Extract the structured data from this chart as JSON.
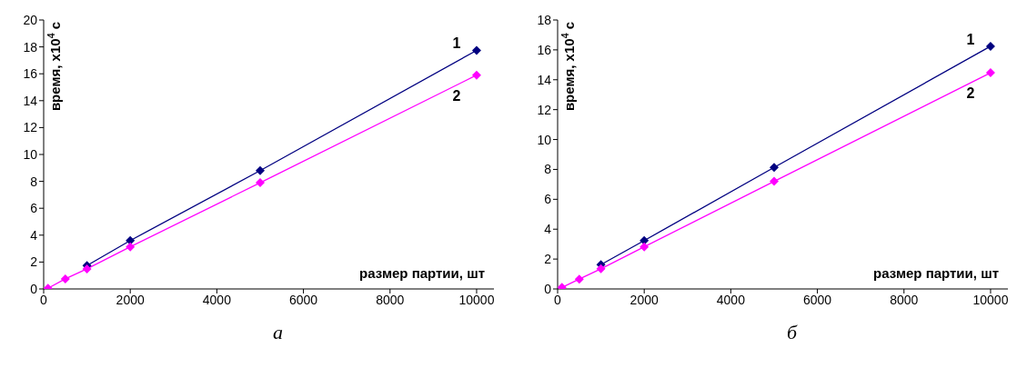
{
  "chart_data": [
    {
      "type": "line",
      "annotations": [
        "а"
      ],
      "xlabel": "размер партии, шт",
      "ylabel": "время, x10$^{4}$ с",
      "x": [
        100,
        500,
        1000,
        2000,
        5000,
        10000
      ],
      "xlim": [
        0,
        10400
      ],
      "xticks": [
        0,
        2000,
        4000,
        6000,
        8000,
        10000
      ],
      "ylim": [
        0,
        20
      ],
      "yticks": [
        0,
        2,
        4,
        6,
        8,
        10,
        12,
        14,
        16,
        18,
        20
      ],
      "grid": false,
      "legend": false,
      "marker": "diamond",
      "line_style": "solid",
      "series": [
        {
          "name": "1",
          "color": "#000080",
          "values": [
            null,
            null,
            1.74,
            3.6,
            8.8,
            17.74
          ]
        },
        {
          "name": "2",
          "color": "#ff00ff",
          "values": [
            0.05,
            0.75,
            1.49,
            3.13,
            7.9,
            15.9
          ]
        }
      ]
    },
    {
      "type": "line",
      "annotations": [
        "б"
      ],
      "xlabel": "размер партии, шт",
      "ylabel": "время, x10$^{4}$ с",
      "x": [
        100,
        500,
        1000,
        2000,
        5000,
        10000
      ],
      "xlim": [
        0,
        10400
      ],
      "xticks": [
        0,
        2000,
        4000,
        6000,
        8000,
        10000
      ],
      "ylim": [
        0,
        18
      ],
      "yticks": [
        0,
        2,
        4,
        6,
        8,
        10,
        12,
        14,
        16,
        18
      ],
      "grid": false,
      "legend": false,
      "marker": "diamond",
      "line_style": "solid",
      "series": [
        {
          "name": "1",
          "color": "#000080",
          "values": [
            null,
            null,
            1.63,
            3.24,
            8.13,
            16.24
          ]
        },
        {
          "name": "2",
          "color": "#ff00ff",
          "values": [
            0.1,
            0.66,
            1.35,
            2.82,
            7.2,
            14.47
          ]
        }
      ]
    }
  ]
}
